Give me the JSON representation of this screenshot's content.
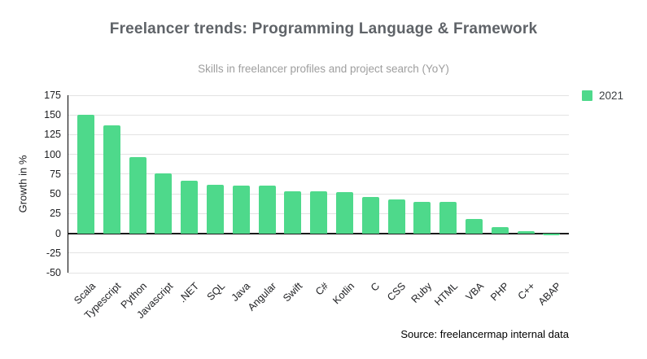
{
  "page": {
    "source_note": "Source: freelancermap internal data"
  },
  "colors": {
    "bar": "#4ed98b",
    "title_text": "#5f6368",
    "subtitle_text": "#9e9e9e",
    "axis_text": "#202124",
    "gridline": "#e3e3e3",
    "zero_line": "#1a1a1a",
    "background": "#ffffff"
  },
  "chart_data": {
    "type": "bar",
    "title": "Freelancer trends: Programming Language & Framework",
    "subtitle": "Skills in freelancer profiles and project search (YoY)",
    "categories": [
      "Scala",
      "Typescript",
      "Python",
      "Javascript",
      ".NET",
      "SQL",
      "Java",
      "Angular",
      "Swift",
      "C#",
      "Kotlin",
      "C",
      "CSS",
      "Ruby",
      "HTML",
      "VBA",
      "PHP",
      "C++",
      "ABAP"
    ],
    "series": [
      {
        "name": "2021",
        "color": "#4ed98b",
        "values": [
          150,
          137,
          97,
          76,
          67,
          61,
          60,
          60,
          53,
          53,
          52,
          46,
          43,
          40,
          40,
          18,
          8,
          3,
          -3
        ]
      }
    ],
    "xlabel": "",
    "ylabel": "Growth in %",
    "ylim": [
      -50,
      175
    ],
    "ytick_step": 25,
    "grid": true,
    "legend_position": "top-right"
  }
}
